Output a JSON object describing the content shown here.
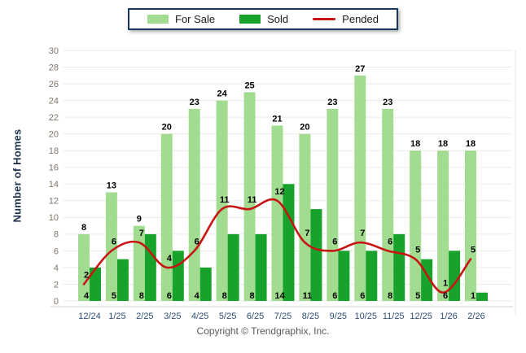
{
  "footer": {
    "copyright": "Copyright © Trendgraphix, Inc."
  },
  "colors": {
    "background": "#ffffff",
    "legend_border": "#17375e",
    "gridline": "#edeae6",
    "axis_line": "#d6d2cc",
    "plot_edge": "#e7e4e0",
    "y_tick_text": "#7f7569",
    "x_tick_text": "#2f4d71",
    "axis_title_text": "#20344f",
    "value_label_text": "#000000",
    "copyright_text": "#5a5a5a"
  },
  "chart_data": {
    "type": "bar",
    "title": "",
    "xlabel": "",
    "ylabel": "Number of Homes",
    "ylim": [
      0,
      30
    ],
    "ytick_step": 2,
    "grid": true,
    "legend_position": "top-center",
    "categories": [
      "12/24",
      "1/25",
      "2/25",
      "3/25",
      "4/25",
      "5/25",
      "6/25",
      "7/25",
      "8/25",
      "9/25",
      "10/25",
      "11/25",
      "12/25",
      "1/26",
      "2/26"
    ],
    "series": [
      {
        "name": "For Sale",
        "type": "bar",
        "color": "#a2dc90",
        "values": [
          8,
          13,
          9,
          20,
          23,
          24,
          25,
          21,
          20,
          23,
          27,
          23,
          18,
          18,
          18
        ]
      },
      {
        "name": "Sold",
        "type": "bar",
        "color": "#17a32b",
        "values": [
          4,
          5,
          8,
          6,
          4,
          8,
          8,
          14,
          11,
          6,
          6,
          8,
          5,
          6,
          1
        ]
      },
      {
        "name": "Pended",
        "type": "line",
        "color": "#c81414",
        "values": [
          2,
          6,
          7,
          4,
          6,
          11,
          11,
          12,
          7,
          6,
          7,
          6,
          5,
          1,
          5
        ]
      }
    ]
  }
}
